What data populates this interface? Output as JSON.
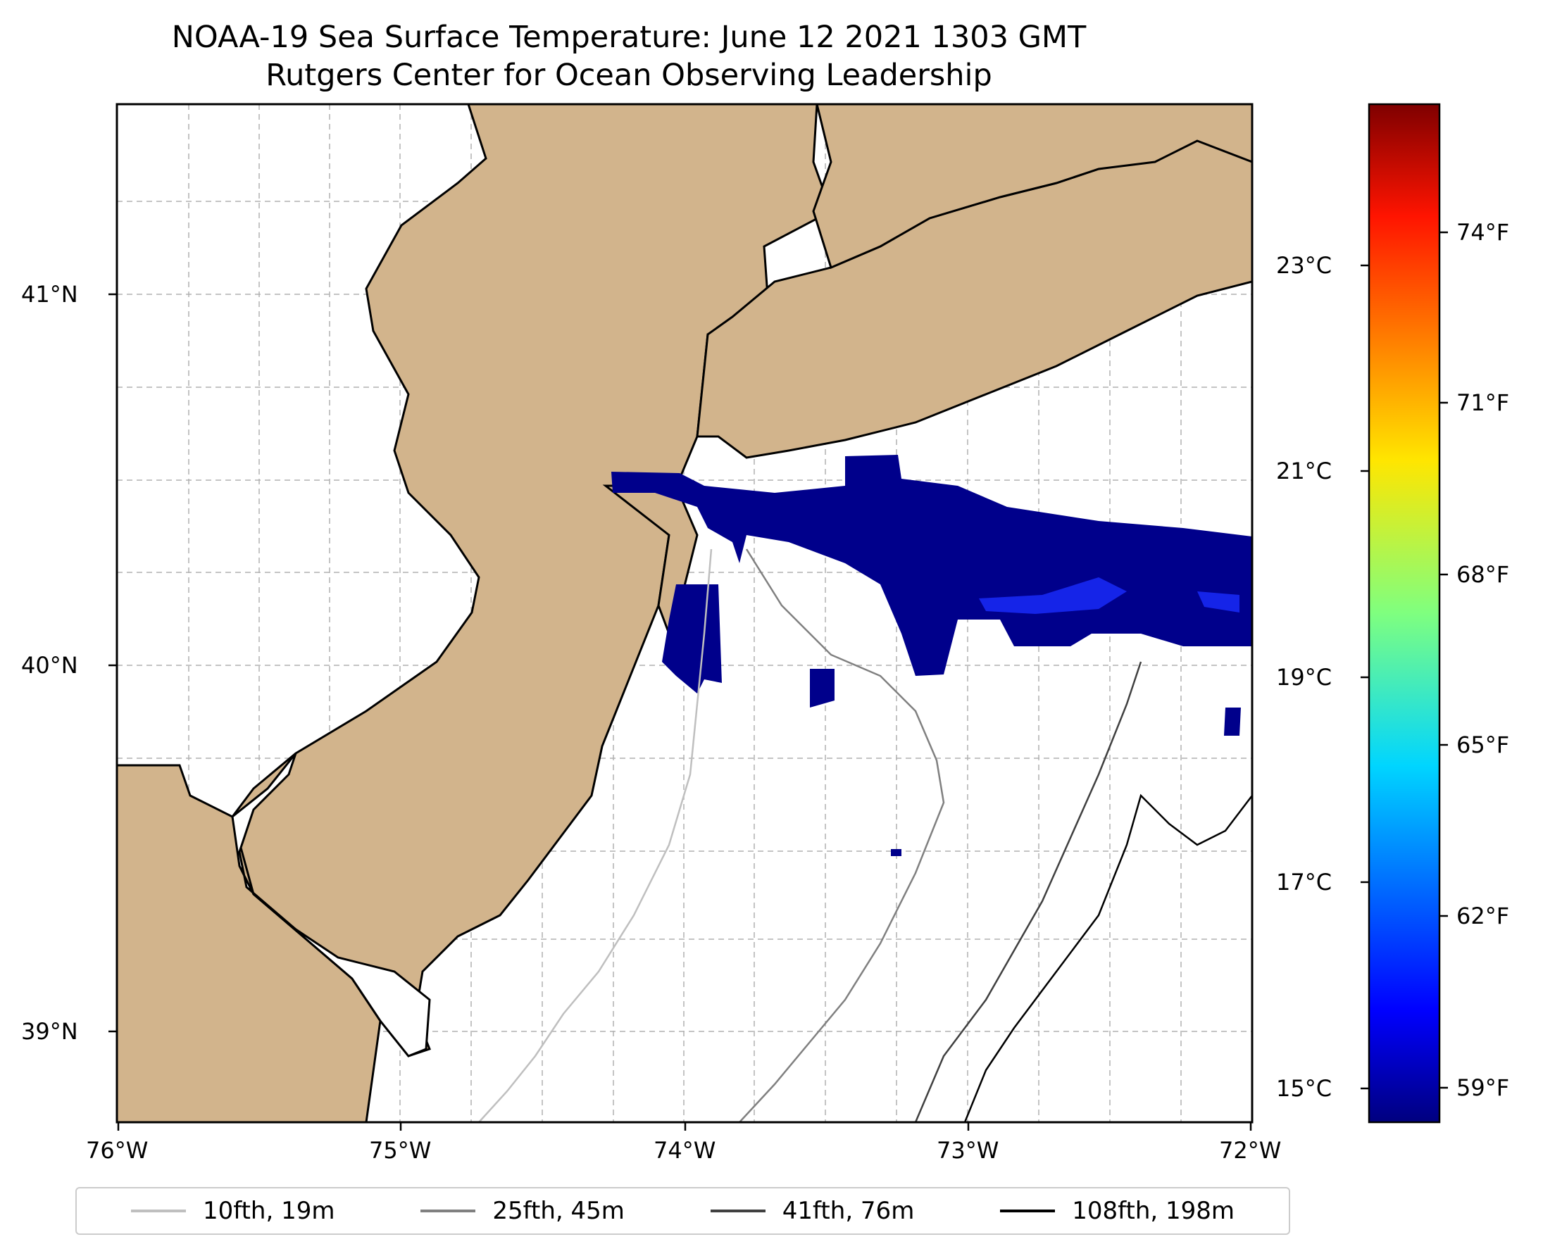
{
  "title": "NOAA-19 Sea Surface Temperature: June 12 2021 1303 GMT",
  "subtitle": "Rutgers Center for Ocean Observing Leadership",
  "map": {
    "lon_range": [
      -76,
      -72
    ],
    "lat_range": [
      38.75,
      41.5
    ],
    "lon_ticks": [
      "76°W",
      "75°W",
      "74°W",
      "73°W",
      "72°W"
    ],
    "lat_ticks": [
      "41°N",
      "40°N",
      "39°N"
    ],
    "land_color": "#d2b48c",
    "ocean_color": "#ffffff",
    "gridlines": true
  },
  "colorbar": {
    "colormap": "jet",
    "celsius_ticks": [
      "23°C",
      "21°C",
      "19°C",
      "17°C",
      "15°C"
    ],
    "fahrenheit_ticks": [
      "74°F",
      "71°F",
      "68°F",
      "65°F",
      "62°F",
      "59°F"
    ]
  },
  "legend": {
    "items": [
      {
        "label": "10fth, 19m",
        "color": "#bfbfbf"
      },
      {
        "label": "25fth, 45m",
        "color": "#808080"
      },
      {
        "label": "41fth, 76m",
        "color": "#404040"
      },
      {
        "label": "108fth, 198m",
        "color": "#000000"
      }
    ]
  },
  "sst_value_shown": "~15°C cold band"
}
